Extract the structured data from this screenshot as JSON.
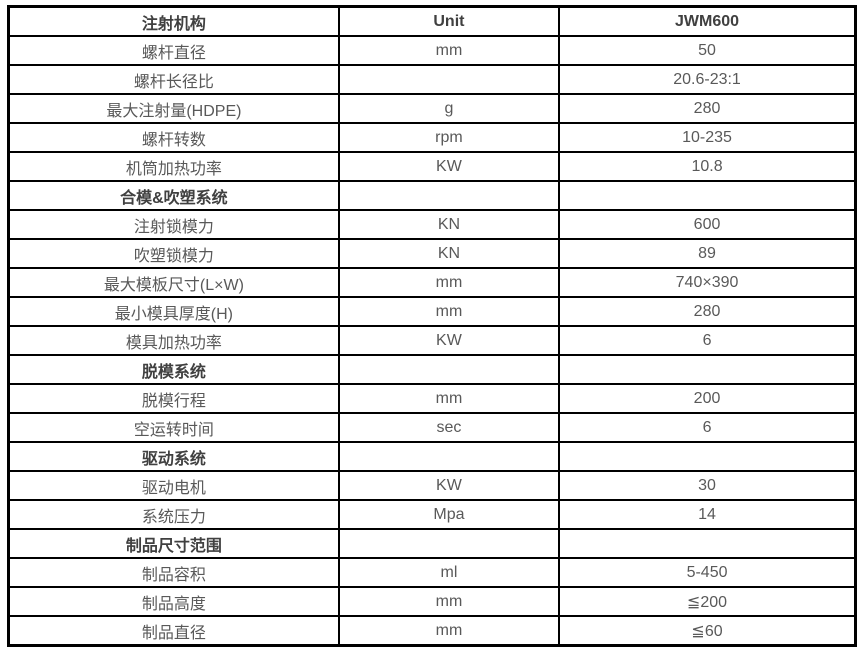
{
  "colors": {
    "border": "#000000",
    "header_text": "#404040",
    "body_text": "#595959",
    "background": "#ffffff"
  },
  "table": {
    "headers": [
      "注射机构",
      "Unit",
      "JWM600"
    ],
    "rows": [
      {
        "type": "data",
        "label": "螺杆直径",
        "unit": "mm",
        "value": "50"
      },
      {
        "type": "data",
        "label": "螺杆长径比",
        "unit": "",
        "value": "20.6-23:1"
      },
      {
        "type": "data",
        "label": "最大注射量(HDPE)",
        "unit": "g",
        "value": "280"
      },
      {
        "type": "data",
        "label": "螺杆转数",
        "unit": "rpm",
        "value": "10-235"
      },
      {
        "type": "data",
        "label": "机筒加热功率",
        "unit": "KW",
        "value": "10.8"
      },
      {
        "type": "section",
        "label": "合模&吹塑系统",
        "unit": "",
        "value": ""
      },
      {
        "type": "data",
        "label": "注射锁模力",
        "unit": "KN",
        "value": "600"
      },
      {
        "type": "data",
        "label": "吹塑锁模力",
        "unit": "KN",
        "value": "89"
      },
      {
        "type": "data",
        "label": "最大模板尺寸(L×W)",
        "unit": "mm",
        "value": "740×390"
      },
      {
        "type": "data",
        "label": "最小模具厚度(H)",
        "unit": "mm",
        "value": "280"
      },
      {
        "type": "data",
        "label": "模具加热功率",
        "unit": "KW",
        "value": "6"
      },
      {
        "type": "section",
        "label": "脱模系统",
        "unit": "",
        "value": ""
      },
      {
        "type": "data",
        "label": "脱模行程",
        "unit": "mm",
        "value": "200"
      },
      {
        "type": "data",
        "label": "空运转时间",
        "unit": "sec",
        "value": "6"
      },
      {
        "type": "section",
        "label": "驱动系统",
        "unit": "",
        "value": ""
      },
      {
        "type": "data",
        "label": "驱动电机",
        "unit": "KW",
        "value": "30"
      },
      {
        "type": "data",
        "label": "系统压力",
        "unit": "Mpa",
        "value": "14"
      },
      {
        "type": "section",
        "label": "制品尺寸范围",
        "unit": "",
        "value": ""
      },
      {
        "type": "data",
        "label": "制品容积",
        "unit": "ml",
        "value": "5-450"
      },
      {
        "type": "data",
        "label": "制品高度",
        "unit": "mm",
        "value": "≦200"
      },
      {
        "type": "data",
        "label": "制品直径",
        "unit": "mm",
        "value": "≦60"
      }
    ]
  }
}
